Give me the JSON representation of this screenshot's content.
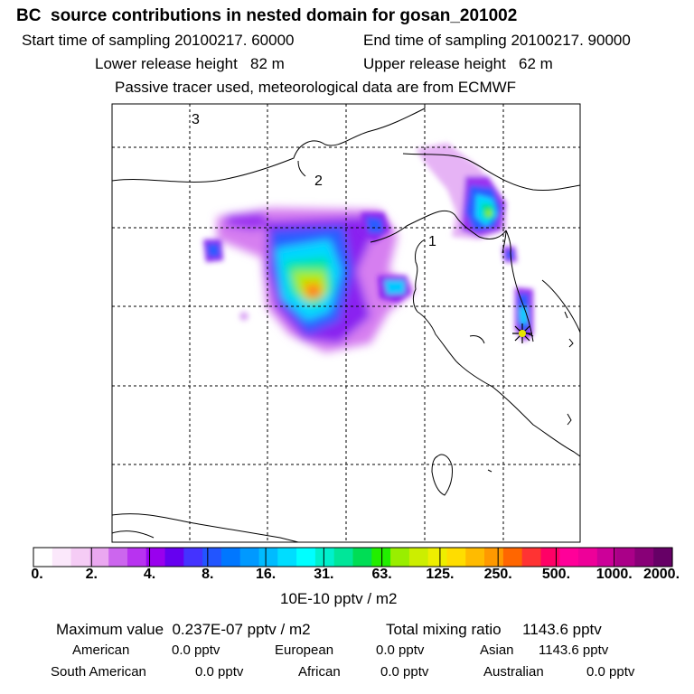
{
  "header": {
    "title": "BC  source contributions in nested domain for gosan_201002",
    "start_time": "Start time of sampling 20100217. 60000",
    "end_time": "End time of sampling 20100217. 90000",
    "lower_release": "Lower release height   82 m",
    "upper_release": "Upper release height   62 m",
    "note": "Passive tracer used, meteorological data are from ECMWF"
  },
  "chart_data": {
    "type": "heatmap",
    "map_labels": [
      "3",
      "2",
      "1"
    ],
    "receptor_marker": "star",
    "colorbar": {
      "tick_labels": [
        "0.",
        "2.",
        "4.",
        "8.",
        "16.",
        "31.",
        "63.",
        "125.",
        "250.",
        "500.",
        "1000.",
        "2000."
      ],
      "unit_label": "10E-10 pptv / m2",
      "colors": [
        "#ffffff",
        "#fbe8fb",
        "#f5ccf5",
        "#eaa8f0",
        "#cc66ee",
        "#b833f0",
        "#9900ee",
        "#6600f0",
        "#4433ff",
        "#2255ff",
        "#0077ff",
        "#0099ff",
        "#00bbff",
        "#00ddff",
        "#00ffff",
        "#00f0cc",
        "#00e699",
        "#00dd55",
        "#22ee00",
        "#99ee00",
        "#ccee00",
        "#eeee00",
        "#ffdd00",
        "#ffbb00",
        "#ff9900",
        "#ff6600",
        "#ff3333",
        "#ff0066",
        "#ff0099",
        "#ee0099",
        "#cc0099",
        "#aa0088",
        "#880077",
        "#660066"
      ]
    },
    "maximum_value": "0.237E-07 pptv / m2",
    "total_mixing_ratio": "1143.6 pptv",
    "regional_contributions": [
      {
        "region": "American",
        "value": "0.0 pptv"
      },
      {
        "region": "European",
        "value": "0.0 pptv"
      },
      {
        "region": "Asian",
        "value": "1143.6 pptv"
      },
      {
        "region": "South American",
        "value": "0.0 pptv"
      },
      {
        "region": "African",
        "value": "0.0 pptv"
      },
      {
        "region": "Australian",
        "value": "0.0 pptv"
      }
    ]
  },
  "summary": {
    "max_label": "Maximum value  0.237E-07 pptv / m2",
    "total_label": "Total mixing ratio     1143.6 pptv"
  }
}
